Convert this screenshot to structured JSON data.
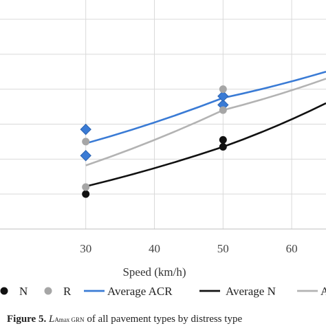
{
  "chart_data": {
    "type": "line",
    "xlabel": "Speed (km/h)",
    "x_ticks": [
      30,
      40,
      50,
      60
    ],
    "xlim": [
      15,
      65
    ],
    "ylim": [
      0,
      6
    ],
    "grid": true,
    "legend_position": "bottom",
    "series": [
      {
        "name": "Average ACR",
        "kind": "line",
        "color": "#3a7bd5",
        "x": [
          30,
          50,
          65
        ],
        "y": [
          2.45,
          3.75,
          4.5
        ]
      },
      {
        "name": "Average N",
        "kind": "line",
        "color": "#111111",
        "x": [
          30,
          50,
          65
        ],
        "y": [
          1.22,
          2.35,
          3.6
        ]
      },
      {
        "name": "Average R",
        "kind": "line",
        "color": "#b3b3b3",
        "x": [
          30,
          50,
          65
        ],
        "y": [
          1.82,
          3.4,
          4.3
        ]
      },
      {
        "name": "ACR",
        "kind": "marker",
        "marker": "diamond",
        "color": "#3a7bd5",
        "x": [
          30,
          30,
          50,
          50
        ],
        "y": [
          2.85,
          2.1,
          3.55,
          3.8
        ]
      },
      {
        "name": "N",
        "kind": "marker",
        "marker": "circle",
        "color": "#111111",
        "x": [
          30,
          50,
          50
        ],
        "y": [
          1.0,
          2.35,
          2.55
        ]
      },
      {
        "name": "R",
        "kind": "marker",
        "marker": "circle",
        "color": "#a6a6a6",
        "x": [
          30,
          30,
          50,
          50
        ],
        "y": [
          1.2,
          2.5,
          3.4,
          4.0
        ]
      }
    ]
  },
  "legend": {
    "items": [
      {
        "label": "N",
        "type": "circle",
        "color": "#111111"
      },
      {
        "label": "R",
        "type": "circle",
        "color": "#a6a6a6"
      },
      {
        "label": "Average ACR",
        "type": "line",
        "color": "#3a7bd5"
      },
      {
        "label": "Average N",
        "type": "line",
        "color": "#111111"
      },
      {
        "label": "A",
        "type": "line",
        "color": "#b3b3b3"
      }
    ]
  },
  "caption": {
    "label": "Figure 5.",
    "text_a": "L",
    "text_sub": "Amax GRN",
    "text_b": " of all pavement types by distress type"
  }
}
